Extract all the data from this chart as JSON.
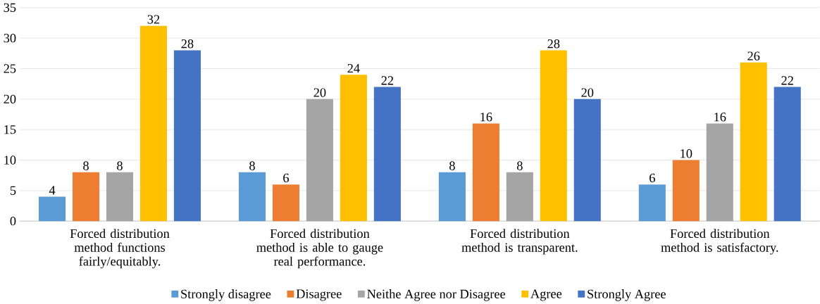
{
  "chart_data": {
    "type": "bar",
    "categories": [
      "Forced distribution method functions fairly/equitably.",
      "Forced distribution method is able to gauge real performance.",
      "Forced distribution method is transparent.",
      "Forced distribution method is satisfactory."
    ],
    "series": [
      {
        "name": "Strongly disagree",
        "color": "#5b9bd5",
        "values": [
          4,
          8,
          8,
          6
        ]
      },
      {
        "name": "Disagree",
        "color": "#ed7d31",
        "values": [
          8,
          6,
          16,
          10
        ]
      },
      {
        "name": "Neithe Agree nor Disagree",
        "color": "#a5a5a5",
        "values": [
          8,
          20,
          8,
          16
        ]
      },
      {
        "name": "Agree",
        "color": "#ffc000",
        "values": [
          32,
          24,
          28,
          26
        ]
      },
      {
        "name": "Strongly Agree",
        "color": "#4472c4",
        "values": [
          28,
          22,
          20,
          22
        ]
      }
    ],
    "ylim": [
      0,
      35
    ],
    "yticks": [
      0,
      5,
      10,
      15,
      20,
      25,
      30,
      35
    ],
    "grid": "y",
    "legend": "bottom",
    "data_labels": true
  }
}
